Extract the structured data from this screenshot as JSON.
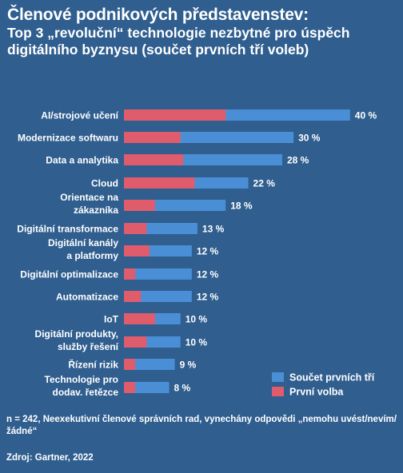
{
  "title": {
    "line1": "Členové podnikových představenstev:",
    "line2": "Top 3 „revoluční“ technologie nezbytné pro úspěch digitálního byznysu (součet prvních tří voleb)"
  },
  "colors": {
    "background": "#2f5e8f",
    "total": "#4a8fd6",
    "first": "#de5c6c"
  },
  "chart_data": {
    "type": "bar",
    "orientation": "horizontal",
    "categories": [
      "AI/strojové učení",
      "Modernizace softwaru",
      "Data a analytika",
      "Cloud",
      "Orientace na zákazníka",
      "Digitální transformace",
      "Digitální kanály a platformy",
      "Digitální optimalizace",
      "Automatizace",
      "IoT",
      "Digitální produkty, služby řešení",
      "Řízení rizik",
      "Technologie pro dodav. řetězce"
    ],
    "category_lines": [
      [
        "AI/strojové učení"
      ],
      [
        "Modernizace softwaru"
      ],
      [
        "Data a analytika"
      ],
      [
        "Cloud"
      ],
      [
        "Orientace na",
        "zákazníka"
      ],
      [
        "Digitální transformace"
      ],
      [
        "Digitální kanály",
        "a platformy"
      ],
      [
        "Digitální optimalizace"
      ],
      [
        "Automatizace"
      ],
      [
        "IoT"
      ],
      [
        "Digitální produkty,",
        "služby řešení"
      ],
      [
        "Řízení rizik"
      ],
      [
        "Technologie pro",
        "dodav. řetězce"
      ]
    ],
    "series": [
      {
        "name": "Součet prvních tří",
        "values": [
          40,
          30,
          28,
          22,
          18,
          13,
          12,
          12,
          12,
          10,
          10,
          9,
          8
        ]
      },
      {
        "name": "První volba",
        "values": [
          18,
          10,
          10.5,
          12.5,
          5.5,
          4,
          4.5,
          2,
          3,
          5.5,
          4,
          2,
          2
        ]
      }
    ],
    "value_labels": [
      "40 %",
      "30 %",
      "28 %",
      "22 %",
      "18 %",
      "13 %",
      "12 %",
      "12 %",
      "12 %",
      "10 %",
      "10 %",
      "9 %",
      "8 %"
    ],
    "legend_position": "bottom-right",
    "xlim": [
      0,
      40
    ],
    "grid": false
  },
  "footnote": "n = 242, Neexekutivní členové správních rad, vynechány odpovědi „nemohu uvést/nevím/žádné“",
  "source": "Zdroj: Gartner, 2022"
}
